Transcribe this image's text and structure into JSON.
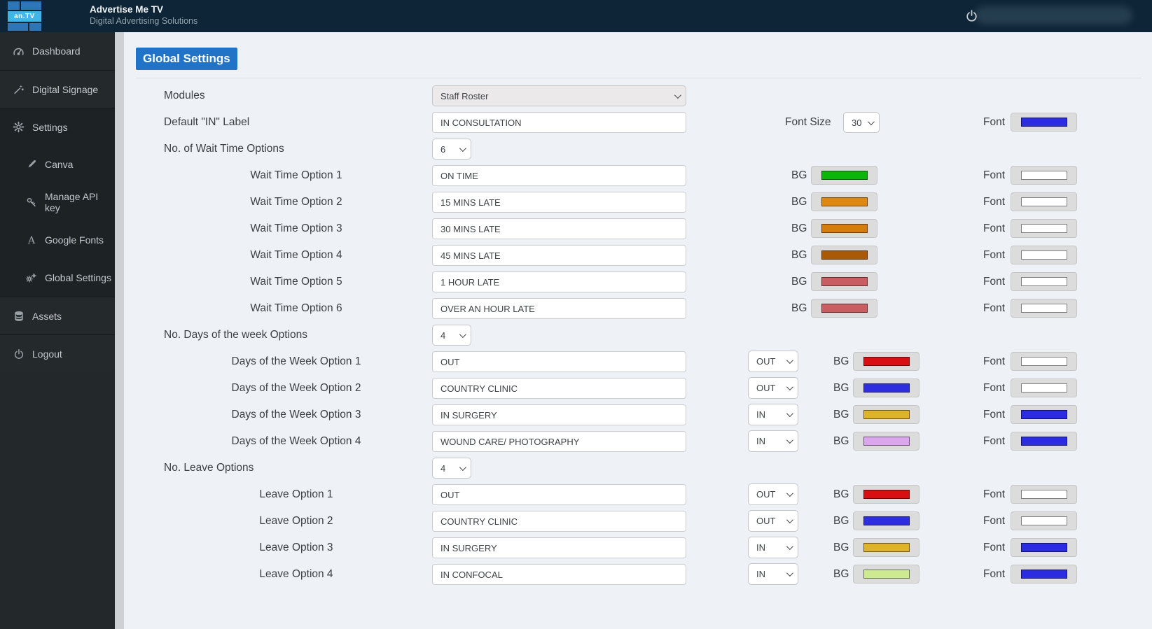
{
  "header": {
    "logo_text": "an.TV",
    "brand_title": "Advertise Me TV",
    "brand_subtitle": "Digital Advertising Solutions",
    "power_icon": "power-icon"
  },
  "sidebar": {
    "items": [
      {
        "label": "Dashboard",
        "icon": "dashboard-icon",
        "indent": false
      },
      {
        "label": "Digital Signage",
        "icon": "signage-icon",
        "indent": false
      },
      {
        "label": "Settings",
        "icon": "gear-icon",
        "indent": false
      },
      {
        "label": "Canva",
        "icon": "brush-icon",
        "indent": true
      },
      {
        "label": "Manage API key",
        "icon": "key-icon",
        "indent": true
      },
      {
        "label": "Google Fonts",
        "icon": "font-a-icon",
        "indent": true
      },
      {
        "label": "Global Settings",
        "icon": "gears-icon",
        "indent": true
      },
      {
        "label": "Assets",
        "icon": "database-icon",
        "indent": false
      },
      {
        "label": "Logout",
        "icon": "power-icon",
        "indent": false
      }
    ]
  },
  "page": {
    "title": "Global Settings"
  },
  "form": {
    "rows": [
      {
        "type": "wide-select",
        "label": "Modules",
        "value": "Staff Roster"
      },
      {
        "type": "text-font",
        "label": "Default \"IN\" Label",
        "value": "IN CONSULTATION",
        "font_size_label": "Font Size",
        "font_size": "30",
        "font_label": "Font",
        "font_color": "#2b2be0"
      },
      {
        "type": "count",
        "label": "No. of Wait Time Options",
        "value": "6"
      },
      {
        "type": "option",
        "label": "Wait Time Option 1",
        "value": "ON TIME",
        "bg_label": "BG",
        "bg_color": "#09b609",
        "font_label": "Font",
        "font_color": "#ffffff"
      },
      {
        "type": "option",
        "label": "Wait Time Option 2",
        "value": "15 MINS LATE",
        "bg_label": "BG",
        "bg_color": "#dd8911",
        "font_label": "Font",
        "font_color": "#ffffff"
      },
      {
        "type": "option",
        "label": "Wait Time Option 3",
        "value": "30 MINS LATE",
        "bg_label": "BG",
        "bg_color": "#d47d0d",
        "font_label": "Font",
        "font_color": "#ffffff"
      },
      {
        "type": "option",
        "label": "Wait Time Option 4",
        "value": "45 MINS LATE",
        "bg_label": "BG",
        "bg_color": "#aa5a06",
        "font_label": "Font",
        "font_color": "#ffffff"
      },
      {
        "type": "option",
        "label": "Wait Time Option 5",
        "value": "1 HOUR LATE",
        "bg_label": "BG",
        "bg_color": "#c95e62",
        "font_label": "Font",
        "font_color": "#ffffff"
      },
      {
        "type": "option",
        "label": "Wait Time Option 6",
        "value": "OVER AN HOUR LATE",
        "bg_label": "BG",
        "bg_color": "#c95e62",
        "font_label": "Font",
        "font_color": "#ffffff"
      },
      {
        "type": "count",
        "label": "No. Days of the week Options",
        "value": "4"
      },
      {
        "type": "option-state",
        "label": "Days of the Week Option 1",
        "value": "OUT",
        "state": "OUT",
        "bg_label": "BG",
        "bg_color": "#d90e13",
        "font_label": "Font",
        "font_color": "#ffffff"
      },
      {
        "type": "option-state",
        "label": "Days of the Week Option 2",
        "value": "COUNTRY CLINIC",
        "state": "OUT",
        "bg_label": "BG",
        "bg_color": "#2e2ee0",
        "font_label": "Font",
        "font_color": "#ffffff"
      },
      {
        "type": "option-state",
        "label": "Days of the Week Option 3",
        "value": "IN SURGERY",
        "state": "IN",
        "bg_label": "BG",
        "bg_color": "#dcb32b",
        "font_label": "Font",
        "font_color": "#2b2be0"
      },
      {
        "type": "option-state",
        "label": "Days of the Week Option 4",
        "value": "WOUND CARE/ PHOTOGRAPHY",
        "state": "IN",
        "bg_label": "BG",
        "bg_color": "#dba6ed",
        "font_label": "Font",
        "font_color": "#2b2be0"
      },
      {
        "type": "count",
        "label": "No. Leave Options",
        "value": "4"
      },
      {
        "type": "option-state",
        "label": "Leave Option 1",
        "value": "OUT",
        "state": "OUT",
        "bg_label": "BG",
        "bg_color": "#d90e13",
        "font_label": "Font",
        "font_color": "#ffffff"
      },
      {
        "type": "option-state",
        "label": "Leave Option 2",
        "value": "COUNTRY CLINIC",
        "state": "OUT",
        "bg_label": "BG",
        "bg_color": "#2e2ee0",
        "font_label": "Font",
        "font_color": "#ffffff"
      },
      {
        "type": "option-state",
        "label": "Leave Option 3",
        "value": "IN SURGERY",
        "state": "IN",
        "bg_label": "BG",
        "bg_color": "#dcb32b",
        "font_label": "Font",
        "font_color": "#2b2be0"
      },
      {
        "type": "option-state",
        "label": "Leave Option 4",
        "value": "IN CONFOCAL",
        "state": "IN",
        "bg_label": "BG",
        "bg_color": "#cdea90",
        "font_label": "Font",
        "font_color": "#2b2be0"
      }
    ]
  }
}
